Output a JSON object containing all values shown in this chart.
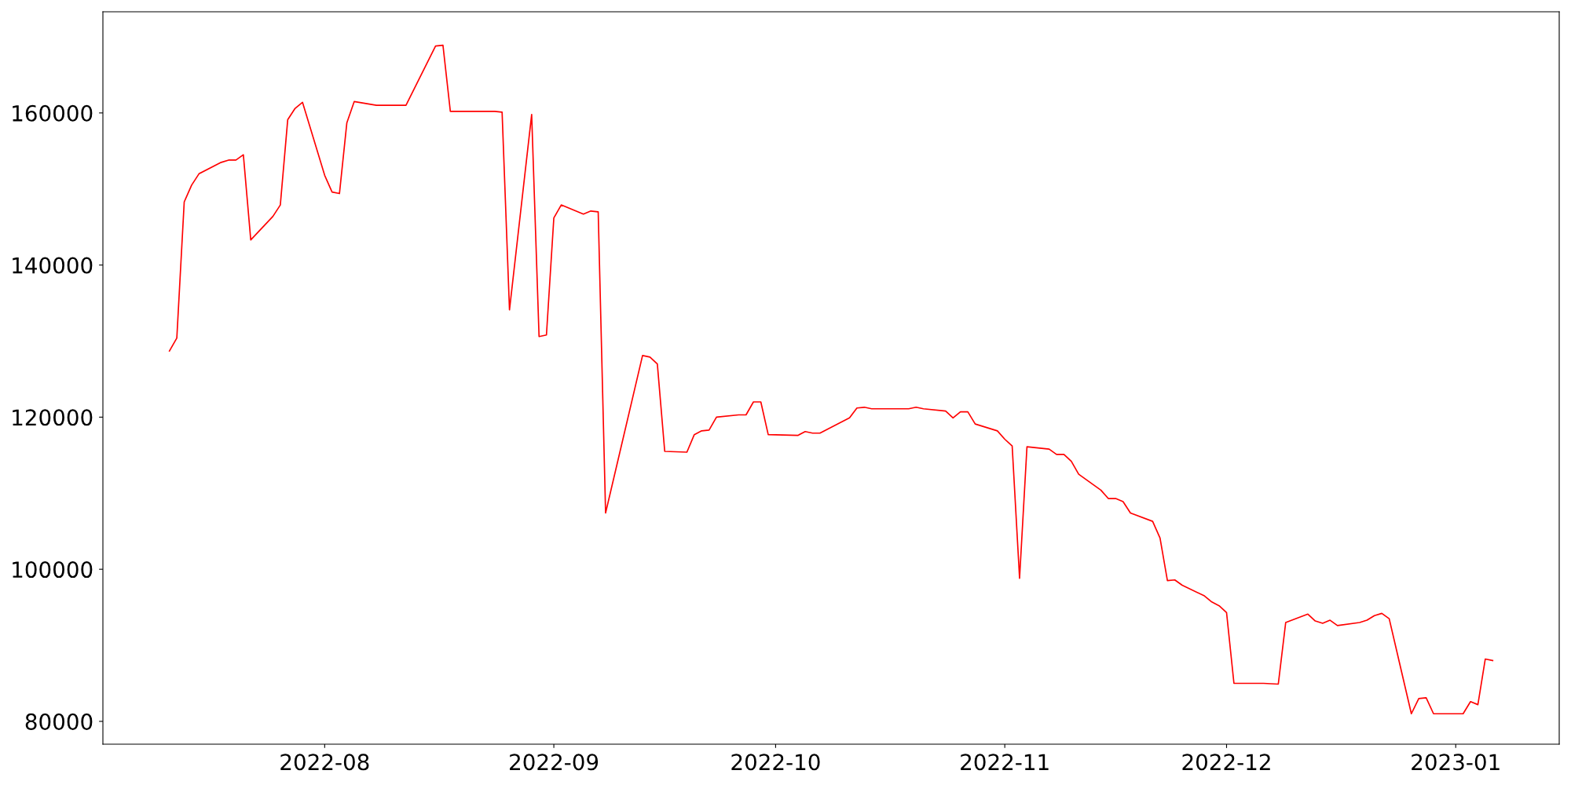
{
  "chart_data": {
    "type": "line",
    "x": [
      "2022-07-11",
      "2022-07-12",
      "2022-07-13",
      "2022-07-14",
      "2022-07-15",
      "2022-07-18",
      "2022-07-19",
      "2022-07-20",
      "2022-07-21",
      "2022-07-22",
      "2022-07-25",
      "2022-07-26",
      "2022-07-27",
      "2022-07-28",
      "2022-07-29",
      "2022-08-01",
      "2022-08-02",
      "2022-08-03",
      "2022-08-04",
      "2022-08-05",
      "2022-08-08",
      "2022-08-12",
      "2022-08-16",
      "2022-08-17",
      "2022-08-18",
      "2022-08-24",
      "2022-08-25",
      "2022-08-26",
      "2022-08-29",
      "2022-08-30",
      "2022-08-31",
      "2022-09-01",
      "2022-09-02",
      "2022-09-05",
      "2022-09-06",
      "2022-09-07",
      "2022-09-08",
      "2022-09-13",
      "2022-09-14",
      "2022-09-15",
      "2022-09-16",
      "2022-09-19",
      "2022-09-20",
      "2022-09-21",
      "2022-09-22",
      "2022-09-23",
      "2022-09-26",
      "2022-09-27",
      "2022-09-28",
      "2022-09-29",
      "2022-09-30",
      "2022-10-04",
      "2022-10-05",
      "2022-10-06",
      "2022-10-07",
      "2022-10-11",
      "2022-10-12",
      "2022-10-13",
      "2022-10-14",
      "2022-10-19",
      "2022-10-20",
      "2022-10-21",
      "2022-10-24",
      "2022-10-25",
      "2022-10-26",
      "2022-10-27",
      "2022-10-28",
      "2022-10-31",
      "2022-11-01",
      "2022-11-02",
      "2022-11-03",
      "2022-11-04",
      "2022-11-07",
      "2022-11-08",
      "2022-11-09",
      "2022-11-10",
      "2022-11-11",
      "2022-11-14",
      "2022-11-15",
      "2022-11-16",
      "2022-11-17",
      "2022-11-18",
      "2022-11-21",
      "2022-11-22",
      "2022-11-23",
      "2022-11-24",
      "2022-11-25",
      "2022-11-28",
      "2022-11-29",
      "2022-11-30",
      "2022-12-01",
      "2022-12-02",
      "2022-12-06",
      "2022-12-08",
      "2022-12-09",
      "2022-12-12",
      "2022-12-13",
      "2022-12-14",
      "2022-12-15",
      "2022-12-16",
      "2022-12-19",
      "2022-12-20",
      "2022-12-21",
      "2022-12-22",
      "2022-12-23",
      "2022-12-26",
      "2022-12-27",
      "2022-12-28",
      "2022-12-29",
      "2023-01-02",
      "2023-01-03",
      "2023-01-04",
      "2023-01-05",
      "2023-01-06"
    ],
    "series": [
      {
        "color": "#ff0000",
        "values": [
          128700,
          130400,
          148300,
          150500,
          152000,
          153500,
          153800,
          153800,
          154500,
          143300,
          146400,
          147900,
          159100,
          160600,
          161400,
          151800,
          149600,
          149400,
          158700,
          161500,
          161000,
          161000,
          168800,
          168900,
          160200,
          160200,
          160100,
          134100,
          159800,
          130600,
          130800,
          146200,
          147900,
          146700,
          147100,
          147000,
          107400,
          128100,
          127900,
          127000,
          115500,
          115400,
          117700,
          118200,
          118300,
          120000,
          120300,
          120300,
          122000,
          122000,
          117700,
          117600,
          118100,
          117900,
          117900,
          119900,
          121200,
          121300,
          121100,
          121100,
          121300,
          121100,
          120800,
          119900,
          120700,
          120700,
          119100,
          118200,
          117100,
          116200,
          98800,
          116100,
          115800,
          115100,
          115100,
          114200,
          112500,
          110400,
          109300,
          109300,
          108900,
          107400,
          106300,
          104100,
          98500,
          98600,
          97900,
          96500,
          95700,
          95200,
          94300,
          85000,
          85000,
          84900,
          93000,
          94100,
          93200,
          92900,
          93300,
          92600,
          93000,
          93300,
          93900,
          94200,
          93500,
          81000,
          83000,
          83100,
          81000,
          81000,
          82600,
          82200,
          88200,
          88000
        ]
      }
    ],
    "xlim": [
      "2022-07-02",
      "2023-01-15"
    ],
    "xticks": [
      {
        "value": "2022-08-01",
        "label": "2022-08"
      },
      {
        "value": "2022-09-01",
        "label": "2022-09"
      },
      {
        "value": "2022-10-01",
        "label": "2022-10"
      },
      {
        "value": "2022-11-01",
        "label": "2022-11"
      },
      {
        "value": "2022-12-01",
        "label": "2022-12"
      },
      {
        "value": "2023-01-01",
        "label": "2023-01"
      }
    ],
    "ylim": [
      77000,
      173300
    ],
    "yticks": [
      80000,
      100000,
      120000,
      140000,
      160000
    ],
    "grid": false,
    "marker": "none",
    "line_style": "solid"
  }
}
